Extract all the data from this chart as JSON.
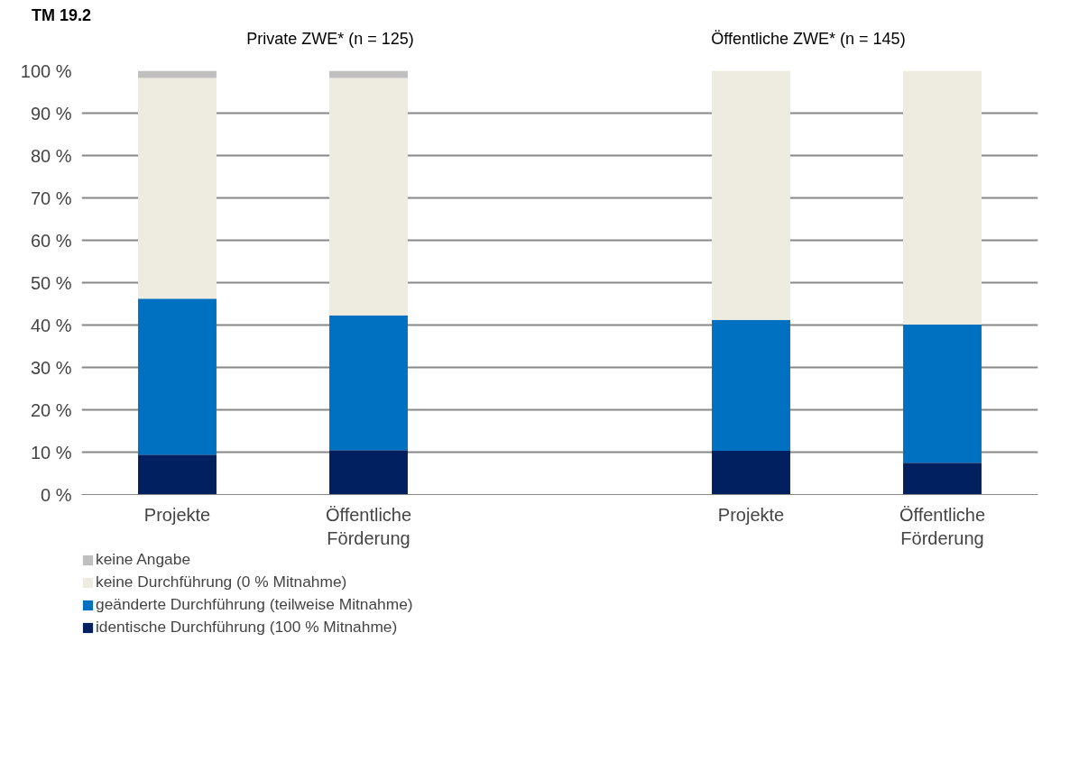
{
  "chart_data": {
    "type": "bar",
    "stacked": true,
    "title": "TM 19.2",
    "annotations": [
      "Private ZWE* (n = 125)",
      "Öffentliche ZWE* (n = 145)"
    ],
    "categories": [
      "Projekte",
      "Öffentliche\nFörderung",
      null,
      "Projekte",
      "Öffentliche\nFörderung"
    ],
    "series": [
      {
        "name": "identische Durchführung (100 % Mitnahme)",
        "color": "#002060",
        "values": [
          9.4,
          10.5,
          null,
          10.3,
          7.5
        ]
      },
      {
        "name": "geänderte Durchführung (teilweise Mitnahme)",
        "color": "#0070c0",
        "values": [
          36.8,
          31.8,
          null,
          30.9,
          32.6
        ]
      },
      {
        "name": "keine Durchführung (0 % Mitnahme)",
        "color": "#eeebe0",
        "values": [
          52.1,
          56.0,
          null,
          58.8,
          59.9
        ]
      },
      {
        "name": "keine Angabe",
        "color": "#bfbfbf",
        "values": [
          1.7,
          1.7,
          null,
          0,
          0
        ]
      }
    ],
    "ylim": [
      0,
      100
    ],
    "yticks": [
      {
        "value": 0,
        "label": "0 %"
      },
      {
        "value": 10,
        "label": "10 %"
      },
      {
        "value": 20,
        "label": "20 %"
      },
      {
        "value": 30,
        "label": "30 %"
      },
      {
        "value": 40,
        "label": "40 %"
      },
      {
        "value": 50,
        "label": "50 %"
      },
      {
        "value": 60,
        "label": "60 %"
      },
      {
        "value": 70,
        "label": "70 %"
      },
      {
        "value": 80,
        "label": "80 %"
      },
      {
        "value": 90,
        "label": "90 %"
      },
      {
        "value": 100,
        "label": "100 %"
      }
    ],
    "grid": "y",
    "legend": "bottom"
  }
}
